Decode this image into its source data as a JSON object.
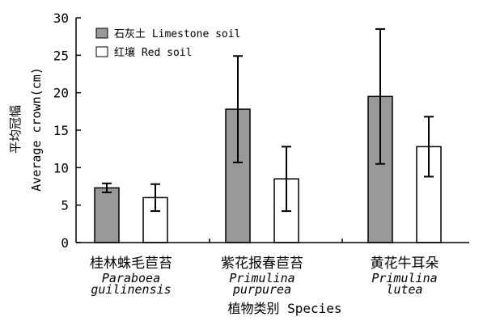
{
  "chart_data": {
    "type": "bar",
    "ylabel_cn": "平均冠幅",
    "ylabel_en": "Average crown(cm)",
    "xlabel": "植物类别 Species",
    "ylim": [
      0,
      30
    ],
    "yticks": [
      0,
      5,
      10,
      15,
      20,
      25,
      30
    ],
    "legend_position": "top-left",
    "categories": [
      {
        "cn": "桂林蛛毛苣苔",
        "latin": [
          "Paraboea",
          "guilinensis"
        ]
      },
      {
        "cn": "紫花报春苣苔",
        "latin": [
          "Primulina",
          "purpurea"
        ]
      },
      {
        "cn": "黄花牛耳朵",
        "latin": [
          "Primulina",
          "lutea"
        ]
      }
    ],
    "series": [
      {
        "name": "石灰土 Limestone soil",
        "color": "#999999",
        "values": [
          7.3,
          17.8,
          19.5
        ],
        "errors": [
          0.6,
          7.1,
          9.0
        ]
      },
      {
        "name": "红壤 Red soil",
        "color": "#ffffff",
        "values": [
          6.0,
          8.5,
          12.8
        ],
        "errors": [
          1.8,
          4.3,
          4.0
        ]
      }
    ]
  }
}
